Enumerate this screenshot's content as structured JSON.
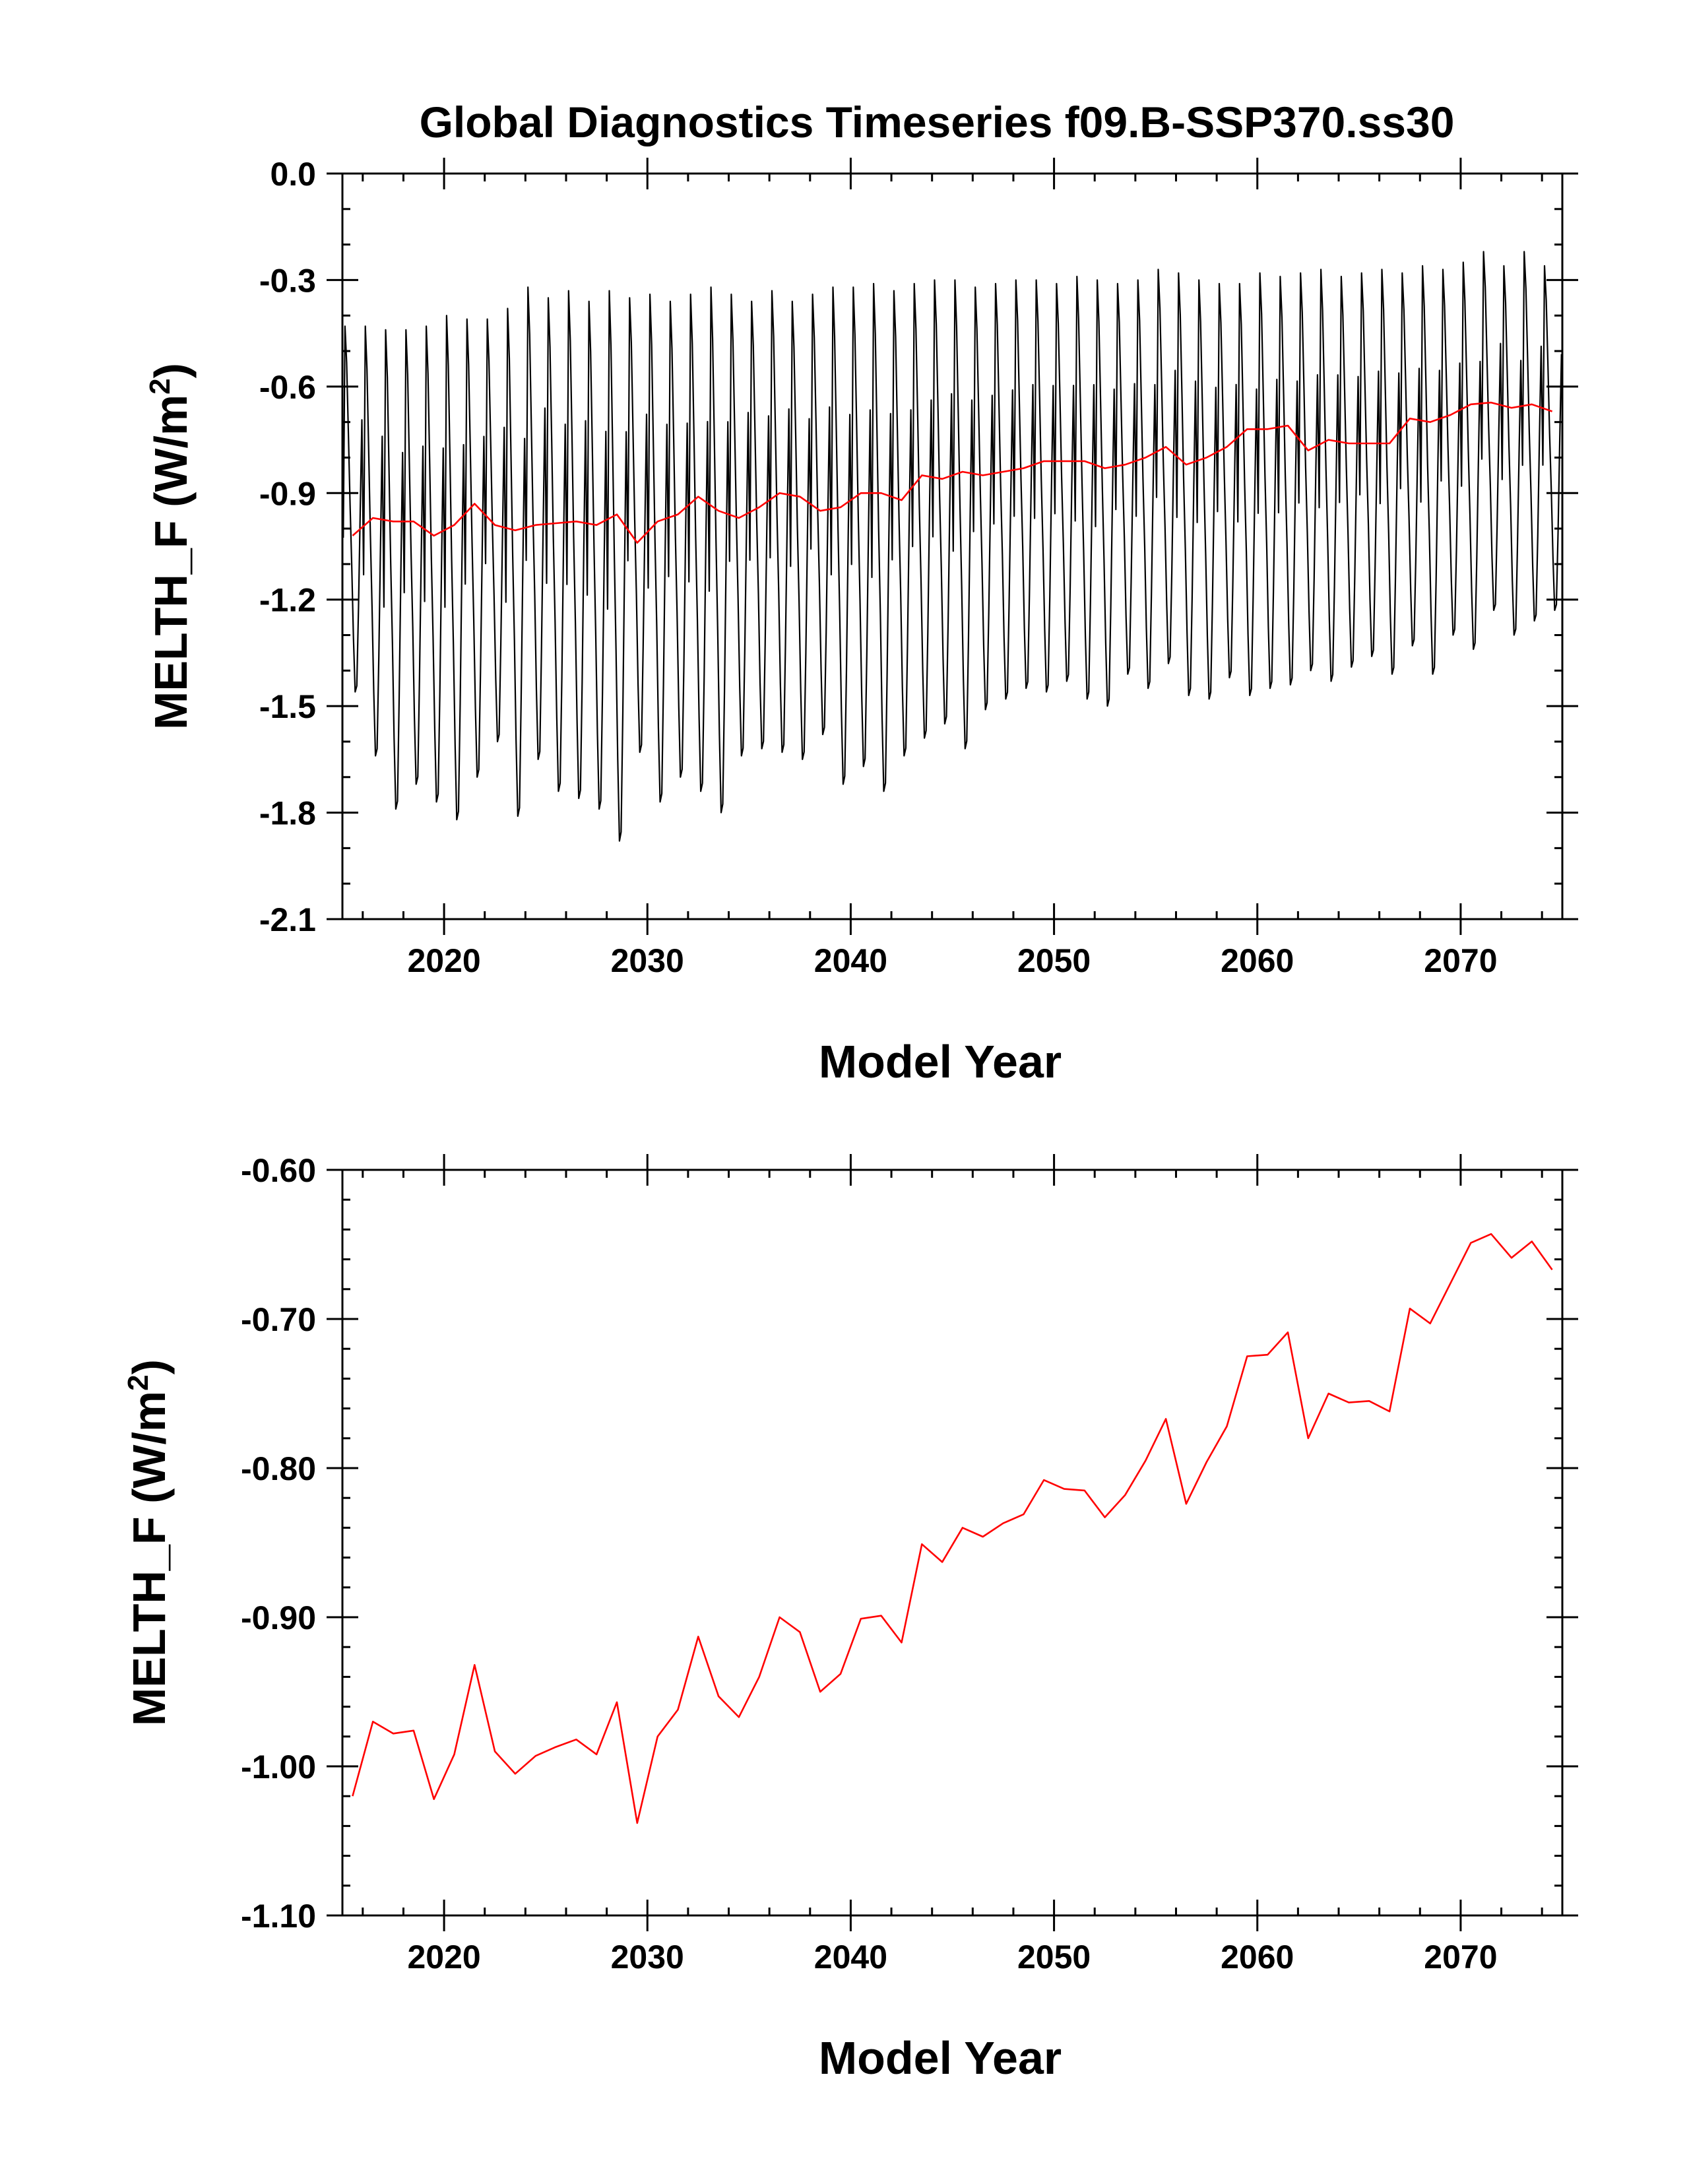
{
  "chart_data": [
    {
      "type": "line",
      "title": "Global Diagnostics Timeseries f09.B-SSP370.ss30",
      "xlabel": "Model Year",
      "ylabel": "MELTH_F (W/m",
      "ylabel_sup": "2",
      "ylabel_close": ")",
      "xlim": [
        2015,
        2075
      ],
      "ylim": [
        -2.1,
        0.0
      ],
      "x_ticks": [
        "2020",
        "2030",
        "2040",
        "2050",
        "2060",
        "2070"
      ],
      "y_ticks": [
        "0.0",
        "-0.3",
        "-0.6",
        "-0.9",
        "-1.2",
        "-1.5",
        "-1.8",
        "-2.1"
      ],
      "grid": false,
      "series": [
        {
          "kind": "monthly",
          "color": "#000000",
          "x_start": 2015.0,
          "monthly_shape": [
            -1.13,
            -0.43,
            -0.55,
            -0.78,
            -1.02,
            -1.22,
            -1.46,
            -1.64,
            -1.62,
            -1.36,
            -1.04,
            -0.74
          ],
          "year_peaks": [
            -0.43,
            -0.43,
            -0.44,
            -0.44,
            -0.43,
            -0.4,
            -0.41,
            -0.41,
            -0.38,
            -0.32,
            -0.35,
            -0.33,
            -0.36,
            -0.33,
            -0.35,
            -0.34,
            -0.36,
            -0.34,
            -0.32,
            -0.34,
            -0.36,
            -0.33,
            -0.36,
            -0.34,
            -0.32,
            -0.32,
            -0.31,
            -0.33,
            -0.31,
            -0.3,
            -0.3,
            -0.32,
            -0.31,
            -0.3,
            -0.3,
            -0.31,
            -0.29,
            -0.3,
            -0.31,
            -0.3,
            -0.27,
            -0.28,
            -0.3,
            -0.31,
            -0.31,
            -0.28,
            -0.29,
            -0.28,
            -0.27,
            -0.29,
            -0.28,
            -0.27,
            -0.28,
            -0.26,
            -0.27,
            -0.25,
            -0.22,
            -0.26,
            -0.22,
            -0.26
          ],
          "year_troughs": [
            -1.46,
            -1.64,
            -1.79,
            -1.72,
            -1.77,
            -1.82,
            -1.7,
            -1.6,
            -1.81,
            -1.65,
            -1.74,
            -1.76,
            -1.79,
            -1.88,
            -1.63,
            -1.77,
            -1.7,
            -1.74,
            -1.8,
            -1.64,
            -1.62,
            -1.63,
            -1.65,
            -1.58,
            -1.72,
            -1.67,
            -1.74,
            -1.64,
            -1.59,
            -1.55,
            -1.62,
            -1.51,
            -1.48,
            -1.45,
            -1.46,
            -1.43,
            -1.48,
            -1.5,
            -1.41,
            -1.45,
            -1.38,
            -1.47,
            -1.48,
            -1.42,
            -1.47,
            -1.45,
            -1.44,
            -1.4,
            -1.43,
            -1.39,
            -1.36,
            -1.41,
            -1.33,
            -1.41,
            -1.3,
            -1.34,
            -1.23,
            -1.3,
            -1.26,
            -1.23
          ]
        },
        {
          "kind": "annual",
          "color": "#ff0000",
          "x": [
            2015.5,
            2016.5,
            2017.5,
            2018.5,
            2019.5,
            2020.5,
            2021.5,
            2022.5,
            2023.5,
            2024.5,
            2025.5,
            2026.5,
            2027.5,
            2028.5,
            2029.5,
            2030.5,
            2031.5,
            2032.5,
            2033.5,
            2034.5,
            2035.5,
            2036.5,
            2037.5,
            2038.5,
            2039.5,
            2040.5,
            2041.5,
            2042.5,
            2043.5,
            2044.5,
            2045.5,
            2046.5,
            2047.5,
            2048.5,
            2049.5,
            2050.5,
            2051.5,
            2052.5,
            2053.5,
            2054.5,
            2055.5,
            2056.5,
            2057.5,
            2058.5,
            2059.5,
            2060.5,
            2061.5,
            2062.5,
            2063.5,
            2064.5,
            2065.5,
            2066.5,
            2067.5,
            2068.5,
            2069.5,
            2070.5,
            2071.5,
            2072.5,
            2073.5,
            2074.5
          ],
          "y": [
            -1.02,
            -0.97,
            -0.98,
            -0.98,
            -1.02,
            -0.99,
            -0.93,
            -0.99,
            -1.005,
            -0.99,
            -0.985,
            -0.98,
            -0.99,
            -0.96,
            -1.04,
            -0.98,
            -0.96,
            -0.91,
            -0.95,
            -0.97,
            -0.94,
            -0.9,
            -0.91,
            -0.95,
            -0.94,
            -0.9,
            -0.9,
            -0.92,
            -0.85,
            -0.86,
            -0.84,
            -0.85,
            -0.84,
            -0.83,
            -0.81,
            -0.81,
            -0.81,
            -0.83,
            -0.82,
            -0.8,
            -0.77,
            -0.82,
            -0.8,
            -0.77,
            -0.72,
            -0.72,
            -0.71,
            -0.78,
            -0.75,
            -0.76,
            -0.76,
            -0.76,
            -0.69,
            -0.7,
            -0.68,
            -0.65,
            -0.645,
            -0.66,
            -0.65,
            -0.67
          ]
        }
      ]
    },
    {
      "type": "line",
      "xlabel": "Model Year",
      "ylabel": "MELTH_F (W/m",
      "ylabel_sup": "2",
      "ylabel_close": ")",
      "xlim": [
        2015,
        2075
      ],
      "ylim": [
        -1.1,
        -0.6
      ],
      "x_ticks": [
        "2020",
        "2030",
        "2040",
        "2050",
        "2060",
        "2070"
      ],
      "y_ticks": [
        "-0.60",
        "-0.70",
        "-0.80",
        "-0.90",
        "-1.00",
        "-1.10"
      ],
      "grid": false,
      "series": [
        {
          "kind": "annual",
          "color": "#ff0000",
          "x": [
            2015.5,
            2016.5,
            2017.5,
            2018.5,
            2019.5,
            2020.5,
            2021.5,
            2022.5,
            2023.5,
            2024.5,
            2025.5,
            2026.5,
            2027.5,
            2028.5,
            2029.5,
            2030.5,
            2031.5,
            2032.5,
            2033.5,
            2034.5,
            2035.5,
            2036.5,
            2037.5,
            2038.5,
            2039.5,
            2040.5,
            2041.5,
            2042.5,
            2043.5,
            2044.5,
            2045.5,
            2046.5,
            2047.5,
            2048.5,
            2049.5,
            2050.5,
            2051.5,
            2052.5,
            2053.5,
            2054.5,
            2055.5,
            2056.5,
            2057.5,
            2058.5,
            2059.5,
            2060.5,
            2061.5,
            2062.5,
            2063.5,
            2064.5,
            2065.5,
            2066.5,
            2067.5,
            2068.5,
            2069.5,
            2070.5,
            2071.5,
            2072.5,
            2073.5,
            2074.5
          ],
          "y": [
            -1.02,
            -0.97,
            -0.978,
            -0.976,
            -1.022,
            -0.992,
            -0.932,
            -0.99,
            -1.005,
            -0.993,
            -0.987,
            -0.982,
            -0.992,
            -0.957,
            -1.038,
            -0.98,
            -0.962,
            -0.913,
            -0.953,
            -0.967,
            -0.94,
            -0.9,
            -0.91,
            -0.95,
            -0.938,
            -0.901,
            -0.899,
            -0.917,
            -0.851,
            -0.863,
            -0.84,
            -0.846,
            -0.837,
            -0.831,
            -0.808,
            -0.814,
            -0.815,
            -0.833,
            -0.818,
            -0.795,
            -0.767,
            -0.824,
            -0.796,
            -0.772,
            -0.725,
            -0.724,
            -0.709,
            -0.78,
            -0.75,
            -0.756,
            -0.755,
            -0.762,
            -0.693,
            -0.703,
            -0.676,
            -0.649,
            -0.643,
            -0.659,
            -0.648,
            -0.667
          ]
        }
      ]
    }
  ]
}
